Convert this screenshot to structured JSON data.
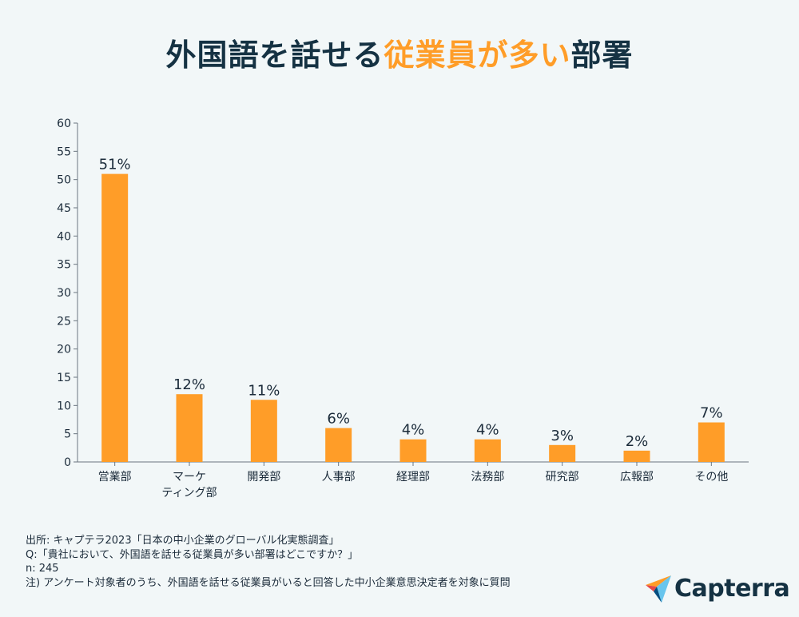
{
  "title": {
    "part1": "外国語を話せる",
    "highlight": "従業員が多い",
    "part2": "部署"
  },
  "chart_data": {
    "type": "bar",
    "categories": [
      [
        "営業部"
      ],
      [
        "マーケ",
        "ティング部"
      ],
      [
        "開発部"
      ],
      [
        "人事部"
      ],
      [
        "経理部"
      ],
      [
        "法務部"
      ],
      [
        "研究部"
      ],
      [
        "広報部"
      ],
      [
        "その他"
      ]
    ],
    "values": [
      51,
      12,
      11,
      6,
      4,
      4,
      3,
      2,
      7
    ],
    "value_labels": [
      "51%",
      "12%",
      "11%",
      "6%",
      "4%",
      "4%",
      "3%",
      "2%",
      "7%"
    ],
    "ylim": [
      0,
      60
    ],
    "yticks": [
      0,
      5,
      10,
      15,
      20,
      25,
      30,
      35,
      40,
      45,
      50,
      55,
      60
    ],
    "grid": false,
    "bar_color": "#ff9d28"
  },
  "notes": {
    "source": "出所: キャプテラ2023「日本の中小企業のグローバル化実態調査」",
    "question": "Q:「貴社において、外国語を話せる従業員が多い部署はどこですか？」",
    "n": "n: 245",
    "note": "注) アンケート対象者のうち、外国語を話せる従業員がいると回答した中小企業意思決定者を対象に質問"
  },
  "logo": {
    "text": "Capterra"
  }
}
